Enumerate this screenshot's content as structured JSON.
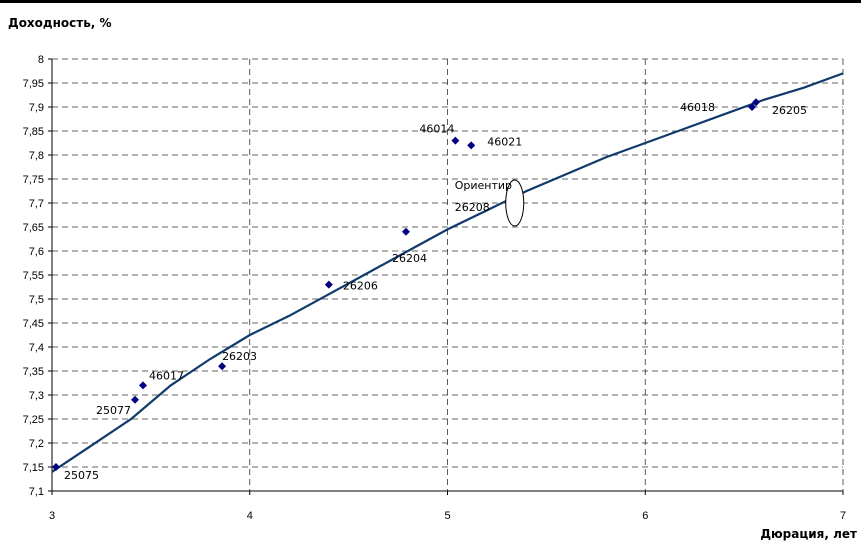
{
  "chart_data": {
    "type": "scatter",
    "ylabel": "Доходность, %",
    "xlabel": "Дюрация, лет",
    "xlim": [
      3,
      7
    ],
    "ylim": [
      7.1,
      8
    ],
    "x_ticks": [
      "3",
      "4",
      "5",
      "6",
      "7"
    ],
    "y_ticks": [
      "7,1",
      "7,15",
      "7,2",
      "7,25",
      "7,3",
      "7,35",
      "7,4",
      "7,45",
      "7,5",
      "7,55",
      "7,6",
      "7,65",
      "7,7",
      "7,75",
      "7,8",
      "7,85",
      "7,9",
      "7,95",
      "8"
    ],
    "grid": true,
    "colors": {
      "points": "#000080",
      "curve": "#0f3a6a"
    },
    "points": [
      {
        "label": "25075",
        "x": 3.02,
        "y": 7.15
      },
      {
        "label": "25077",
        "x": 3.42,
        "y": 7.29
      },
      {
        "label": "46017",
        "x": 3.46,
        "y": 7.32
      },
      {
        "label": "26203",
        "x": 3.86,
        "y": 7.36
      },
      {
        "label": "26206",
        "x": 4.4,
        "y": 7.53
      },
      {
        "label": "26204",
        "x": 4.79,
        "y": 7.64
      },
      {
        "label": "46014",
        "x": 5.04,
        "y": 7.83
      },
      {
        "label": "46021",
        "x": 5.12,
        "y": 7.82
      },
      {
        "label": "46018",
        "x": 6.54,
        "y": 7.9
      },
      {
        "label": "26205",
        "x": 6.56,
        "y": 7.91
      }
    ],
    "curve": {
      "x": [
        3.0,
        3.2,
        3.4,
        3.6,
        3.8,
        4.0,
        4.2,
        4.4,
        4.6,
        4.8,
        5.0,
        5.2,
        5.4,
        5.6,
        5.8,
        6.0,
        6.2,
        6.4,
        6.6,
        6.8,
        7.0
      ],
      "y": [
        7.14,
        7.195,
        7.25,
        7.32,
        7.375,
        7.425,
        7.465,
        7.51,
        7.555,
        7.6,
        7.645,
        7.685,
        7.725,
        7.76,
        7.795,
        7.825,
        7.855,
        7.885,
        7.915,
        7.94,
        7.97
      ]
    },
    "annotation": {
      "lines": [
        "Ориентир",
        "26208"
      ],
      "x": 5.34,
      "y": 7.7
    }
  }
}
